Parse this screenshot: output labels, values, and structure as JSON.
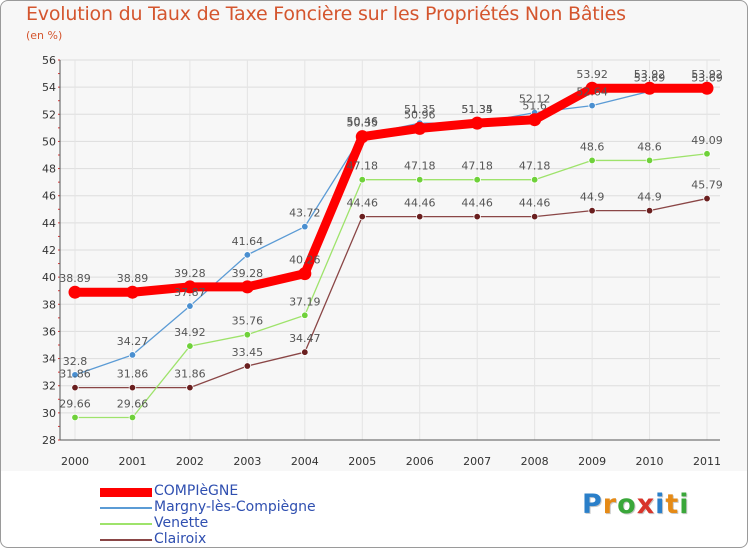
{
  "title": "Evolution du Taux de Taxe Foncière sur les Propriétés Non Bâties",
  "subtitle": "(en %)",
  "logo": {
    "text": "Proxiti",
    "letters": [
      "P",
      "r",
      "o",
      "x",
      "i",
      "t",
      "i"
    ],
    "colors": [
      "#2a7fc9",
      "#e58a16",
      "#3aa73a",
      "#d8352b",
      "#2a7fc9",
      "#e58a16",
      "#3aa73a"
    ]
  },
  "chart_data": {
    "type": "line",
    "title": "Evolution du Taux de Taxe Foncière sur les Propriétés Non Bâties",
    "ylabel": "(en %)",
    "xlabel": "",
    "ylim": [
      28,
      56
    ],
    "yticks": [
      28,
      30,
      32,
      34,
      36,
      38,
      40,
      42,
      44,
      46,
      48,
      50,
      52,
      54,
      56
    ],
    "x": [
      "2000",
      "2001",
      "2002",
      "2003",
      "2004",
      "2005",
      "2006",
      "2007",
      "2008",
      "2009",
      "2010",
      "2011"
    ],
    "grid": true,
    "legend_position": "bottom-left",
    "series": [
      {
        "name": "COMPIèGNE",
        "color": "#ff0000",
        "marker_color": "#ff0000",
        "style": "thick",
        "values": [
          38.89,
          38.89,
          39.28,
          39.28,
          40.26,
          50.35,
          50.96,
          51.35,
          51.6,
          53.92,
          53.92,
          53.92
        ],
        "labels": [
          "38.89",
          "38.89",
          "39.28",
          "39.28",
          "40.26",
          "50.35",
          "50.96",
          "51.35",
          "51.6",
          "53.92",
          "53.92",
          "53.92"
        ]
      },
      {
        "name": "Margny-lès-Compiègne",
        "color": "#5b9bd5",
        "marker_color": "#4a8fd0",
        "style": "thin",
        "values": [
          32.8,
          34.27,
          37.87,
          41.64,
          43.72,
          50.46,
          51.35,
          51.34,
          52.12,
          52.64,
          53.69,
          53.69
        ],
        "labels": [
          "32.8",
          "34.27",
          "37.87",
          "41.64",
          "43.72",
          "50.46",
          "51.35",
          "51.34",
          "52.12",
          "52.64",
          "53.69",
          "53.69"
        ]
      },
      {
        "name": "Venette",
        "color": "#9ee36b",
        "marker_color": "#6fd13a",
        "style": "thin",
        "values": [
          29.66,
          29.66,
          34.92,
          35.76,
          37.19,
          47.18,
          47.18,
          47.18,
          47.18,
          48.6,
          48.6,
          49.09
        ],
        "labels": [
          "29.66",
          "29.66",
          "34.92",
          "35.76",
          "37.19",
          "47.18",
          "47.18",
          "47.18",
          "47.18",
          "48.6",
          "48.6",
          "49.09"
        ]
      },
      {
        "name": "Clairoix",
        "color": "#8a4646",
        "marker_color": "#6a1f1f",
        "style": "thin",
        "values": [
          31.86,
          31.86,
          31.86,
          33.45,
          34.47,
          44.46,
          44.46,
          44.46,
          44.46,
          44.9,
          44.9,
          45.79
        ],
        "labels": [
          "31.86",
          "31.86",
          "31.86",
          "33.45",
          "34.47",
          "44.46",
          "44.46",
          "44.46",
          "44.46",
          "44.9",
          "44.9",
          "45.79"
        ]
      }
    ]
  }
}
